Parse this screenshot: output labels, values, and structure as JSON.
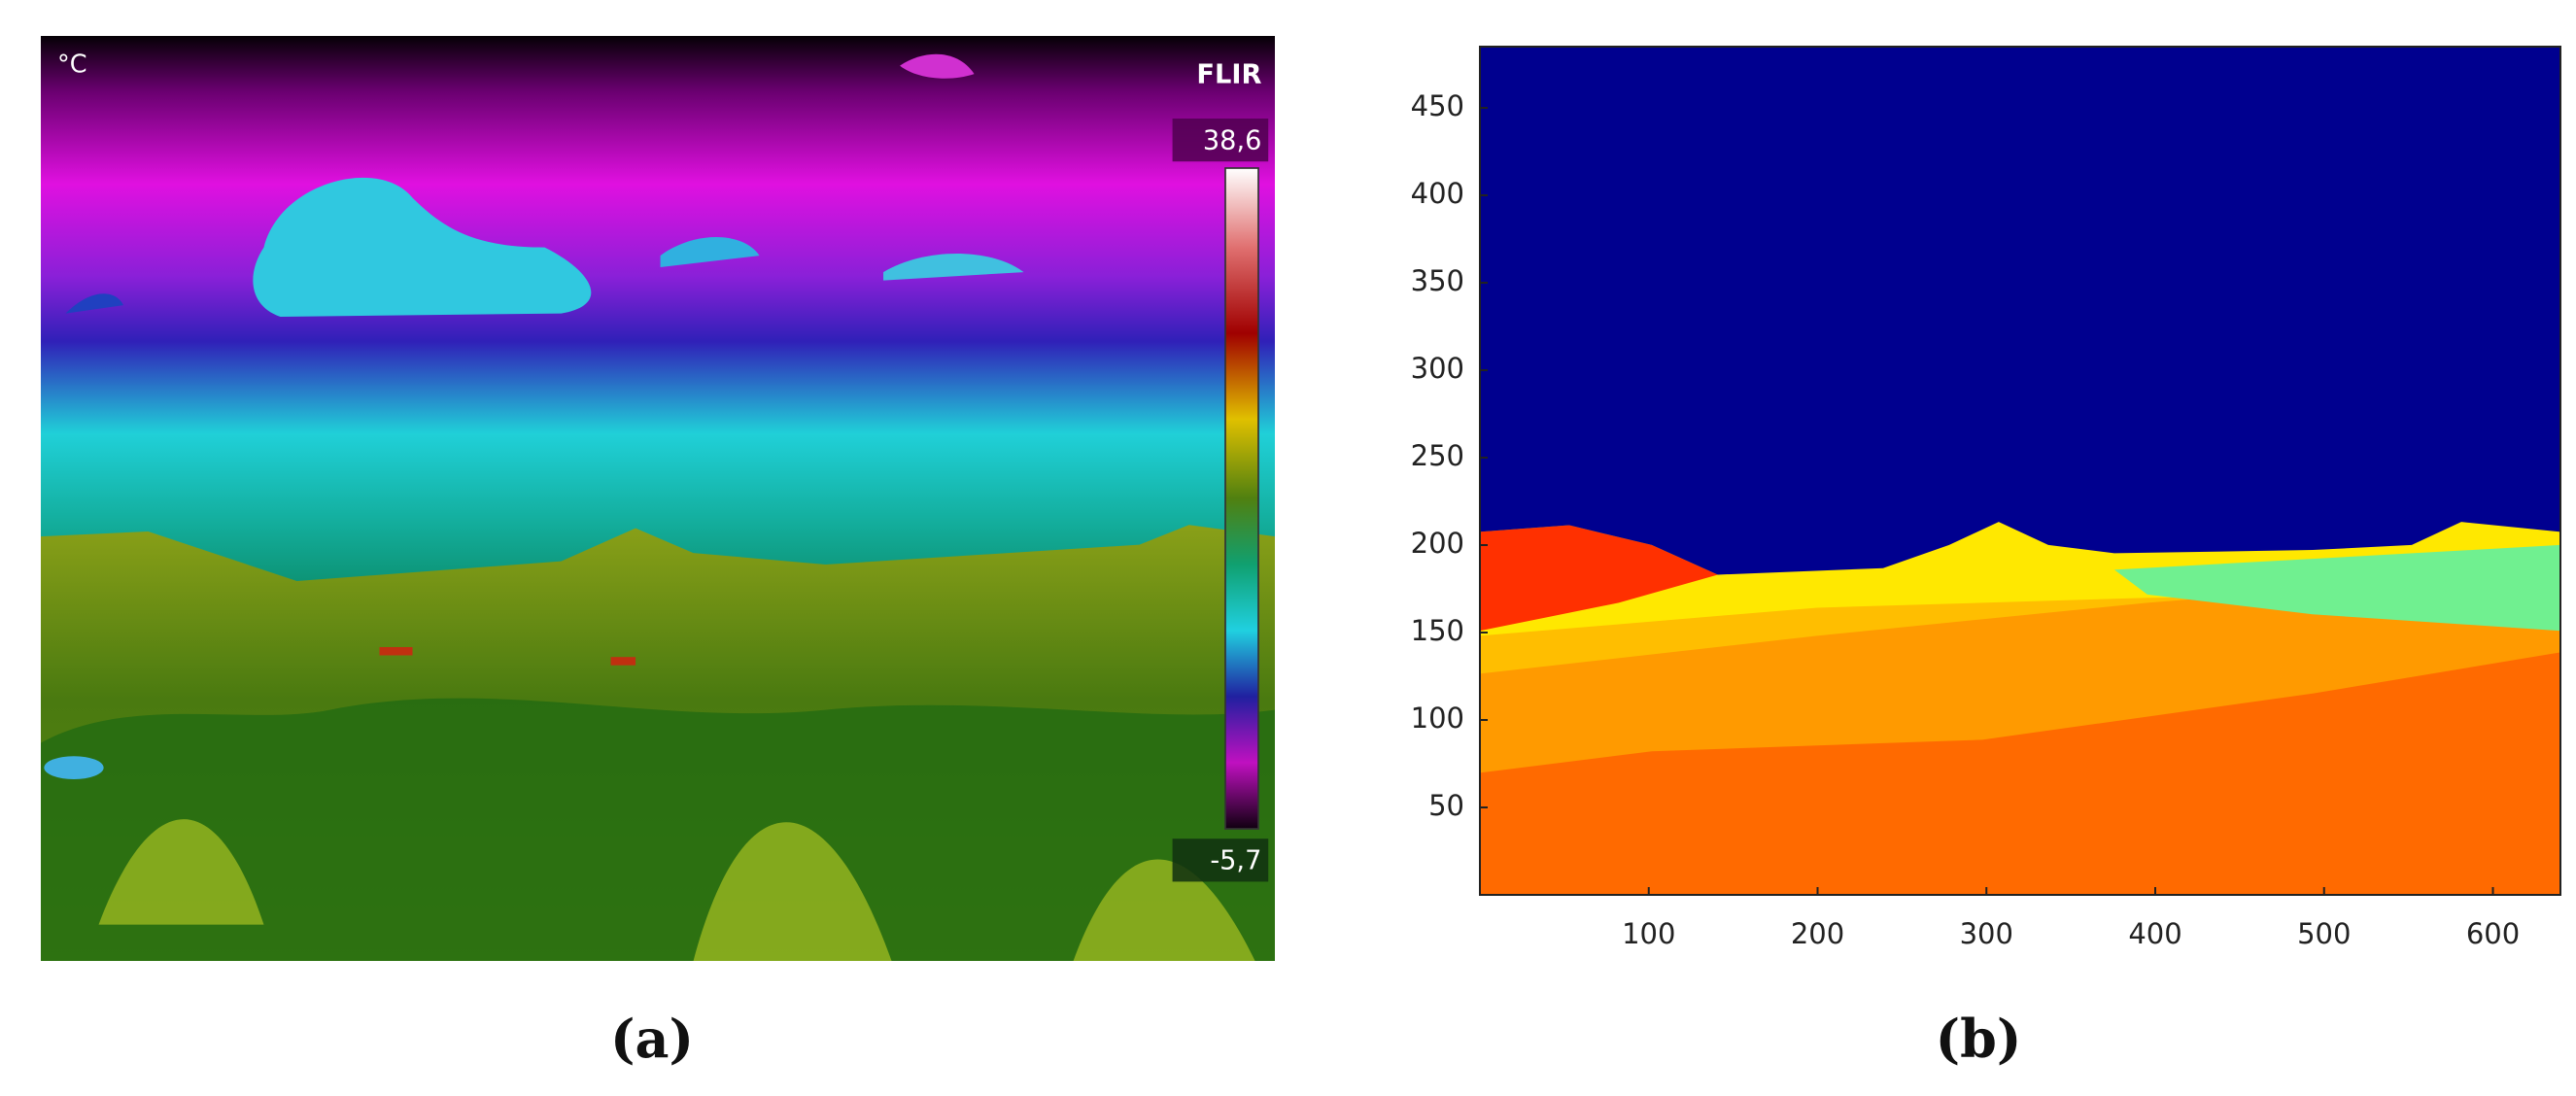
{
  "thermal_image": {
    "unit": "°C",
    "brand": "FLIR",
    "scale_max": "38,6",
    "scale_min": "-5,7"
  },
  "chart_data": {
    "type": "image",
    "xlim": [
      0,
      640
    ],
    "ylim": [
      0,
      485
    ],
    "xticks": [
      100,
      200,
      300,
      400,
      500,
      600
    ],
    "yticks": [
      50,
      100,
      150,
      200,
      250,
      300,
      350,
      400,
      450
    ]
  },
  "panel_labels": [
    "(a)",
    "(b)"
  ]
}
